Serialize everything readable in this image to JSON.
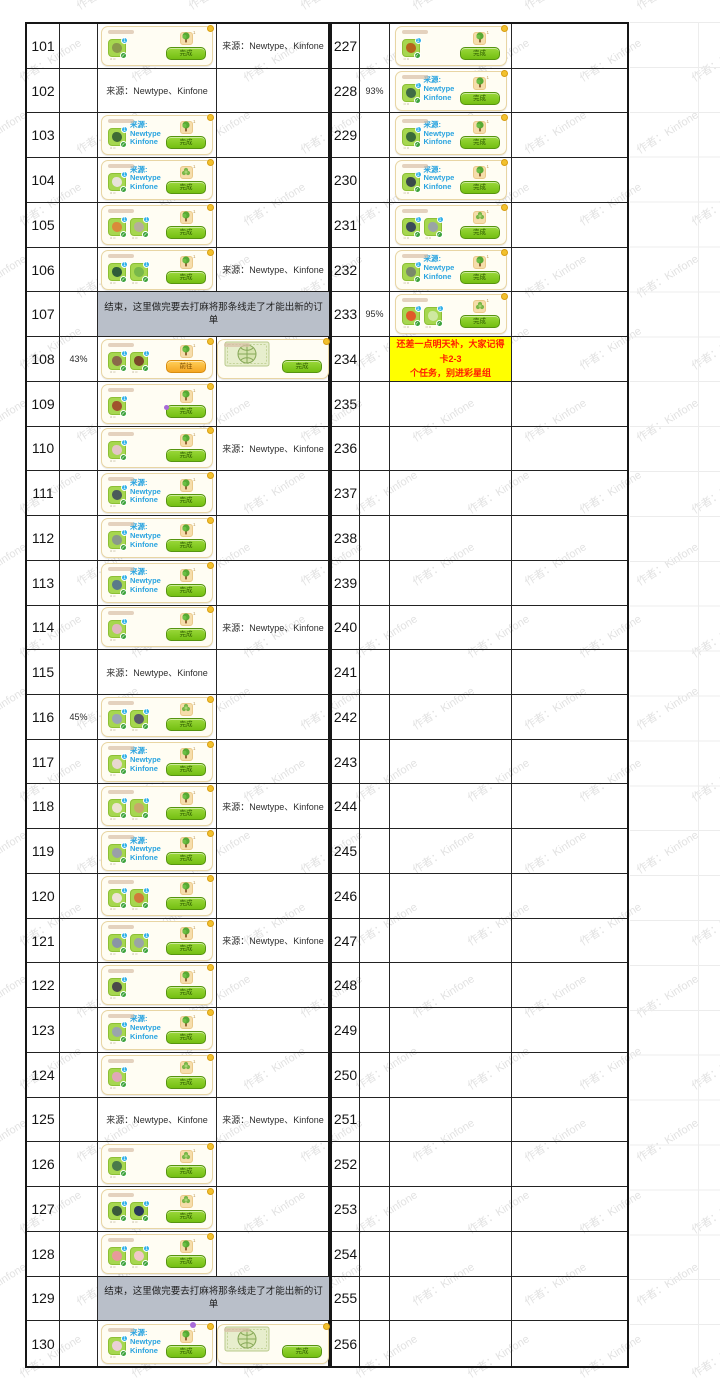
{
  "watermark": {
    "text": "作者：Kinfone",
    "color": "#e2e2e2"
  },
  "labels": {
    "source": "来源：Newtype、Kinfone",
    "card_source_lines": [
      "来源:",
      "Newtype",
      "Kinfone"
    ],
    "done": "完成",
    "go": "前往",
    "badge": "1",
    "reward_count": "1",
    "check": "✓"
  },
  "notes": {
    "gray": "结束，这里做完要去打麻将那条线走了才能出新的订单",
    "yellow_line1": "还差一点明天补，大家记得卡2-3",
    "yellow_line2": "个任务，别进彩星组"
  },
  "colors": {
    "card_bg": "#fffdf3",
    "card_border": "#e8d5a3",
    "item_bg": "#a6d74f",
    "badge_blue": "#2fb0e8",
    "check_green": "#3ba23a",
    "btn_green": "#74bf12",
    "btn_orange": "#f5a623",
    "note_gray_bg": "#b9bfc9",
    "note_yellow_bg": "#ffff00",
    "note_yellow_text": "#ff1e00",
    "inline_source_blue": "#2aa4e0",
    "grid_line": "#222222"
  },
  "left_rows": [
    {
      "num": "101",
      "pct": "",
      "c": {
        "kind": "card",
        "items": [
          "#8a9a4a"
        ],
        "src": false,
        "btn": "done",
        "reward": "tree"
      },
      "d": {
        "kind": "text"
      }
    },
    {
      "num": "102",
      "pct": "",
      "c": {
        "kind": "text"
      },
      "d": {
        "kind": "empty"
      }
    },
    {
      "num": "103",
      "pct": "",
      "c": {
        "kind": "card",
        "items": [
          "#3f6b35"
        ],
        "src": true,
        "btn": "done",
        "reward": "tree"
      },
      "d": {
        "kind": "empty"
      }
    },
    {
      "num": "104",
      "pct": "",
      "c": {
        "kind": "card",
        "items": [
          "#e8e3d8"
        ],
        "src": true,
        "btn": "done",
        "reward": "flower"
      },
      "d": {
        "kind": "empty"
      }
    },
    {
      "num": "105",
      "pct": "",
      "c": {
        "kind": "card",
        "items": [
          "#d98a3a",
          "#b5af9b"
        ],
        "src": false,
        "btn": "done",
        "reward": "tree"
      },
      "d": {
        "kind": "empty"
      }
    },
    {
      "num": "106",
      "pct": "",
      "c": {
        "kind": "card",
        "items": [
          "#2f5d3a",
          "#79b84a"
        ],
        "src": false,
        "btn": "done",
        "reward": "tree"
      },
      "d": {
        "kind": "text"
      }
    },
    {
      "num": "107",
      "pct": "",
      "c": {
        "kind": "gray"
      },
      "d": {
        "kind": "merged"
      }
    },
    {
      "num": "108",
      "pct": "43%",
      "c": {
        "kind": "card",
        "items": [
          "#8a6a4a",
          "#7a4a2a"
        ],
        "src": false,
        "btn": "go",
        "reward": "tree"
      },
      "d": {
        "kind": "card2"
      }
    },
    {
      "num": "109",
      "pct": "",
      "c": {
        "kind": "card",
        "items": [
          "#a0522d"
        ],
        "src": false,
        "btn": "done",
        "reward": "tree",
        "dot": "mid"
      },
      "d": {
        "kind": "empty"
      }
    },
    {
      "num": "110",
      "pct": "",
      "c": {
        "kind": "card",
        "items": [
          "#e3c6c6"
        ],
        "src": false,
        "btn": "done",
        "reward": "tree"
      },
      "d": {
        "kind": "text"
      }
    },
    {
      "num": "111",
      "pct": "",
      "c": {
        "kind": "card",
        "items": [
          "#4a5a5a"
        ],
        "src": true,
        "btn": "done",
        "reward": "tree"
      },
      "d": {
        "kind": "empty"
      }
    },
    {
      "num": "112",
      "pct": "",
      "c": {
        "kind": "card",
        "items": [
          "#8a9a8a"
        ],
        "src": true,
        "btn": "done",
        "reward": "tree"
      },
      "d": {
        "kind": "empty"
      }
    },
    {
      "num": "113",
      "pct": "",
      "c": {
        "kind": "card",
        "items": [
          "#5a7a8a"
        ],
        "src": true,
        "btn": "done",
        "reward": "tree"
      },
      "d": {
        "kind": "empty"
      }
    },
    {
      "num": "114",
      "pct": "",
      "c": {
        "kind": "card",
        "items": [
          "#e0b8c0"
        ],
        "src": false,
        "btn": "done",
        "reward": "tree"
      },
      "d": {
        "kind": "text"
      }
    },
    {
      "num": "115",
      "pct": "",
      "c": {
        "kind": "text"
      },
      "d": {
        "kind": "empty"
      }
    },
    {
      "num": "116",
      "pct": "45%",
      "c": {
        "kind": "card",
        "items": [
          "#9aa5b5",
          "#5a5a6a"
        ],
        "src": false,
        "btn": "done",
        "reward": "flower"
      },
      "d": {
        "kind": "empty"
      }
    },
    {
      "num": "117",
      "pct": "",
      "c": {
        "kind": "card",
        "items": [
          "#e8d8d0"
        ],
        "src": true,
        "btn": "done",
        "reward": "tree"
      },
      "d": {
        "kind": "empty"
      }
    },
    {
      "num": "118",
      "pct": "",
      "c": {
        "kind": "card",
        "items": [
          "#ece4cf",
          "#c8a86a"
        ],
        "src": false,
        "btn": "done",
        "reward": "tree"
      },
      "d": {
        "kind": "text"
      }
    },
    {
      "num": "119",
      "pct": "",
      "c": {
        "kind": "card",
        "items": [
          "#9aa0a8"
        ],
        "src": true,
        "btn": "done",
        "reward": "tree"
      },
      "d": {
        "kind": "empty"
      }
    },
    {
      "num": "120",
      "pct": "",
      "c": {
        "kind": "card",
        "items": [
          "#eee4da",
          "#d07a3a"
        ],
        "src": false,
        "btn": "done",
        "reward": "tree"
      },
      "d": {
        "kind": "empty"
      }
    },
    {
      "num": "121",
      "pct": "",
      "c": {
        "kind": "card",
        "items": [
          "#8a95a5",
          "#9aa5a5"
        ],
        "src": false,
        "btn": "done",
        "reward": "tree"
      },
      "d": {
        "kind": "text"
      }
    },
    {
      "num": "122",
      "pct": "",
      "c": {
        "kind": "card",
        "items": [
          "#4a4a4a"
        ],
        "src": false,
        "btn": "done",
        "reward": "tree"
      },
      "d": {
        "kind": "empty"
      }
    },
    {
      "num": "123",
      "pct": "",
      "c": {
        "kind": "card",
        "items": [
          "#9aa5ad"
        ],
        "src": true,
        "btn": "done",
        "reward": "tree"
      },
      "d": {
        "kind": "empty"
      }
    },
    {
      "num": "124",
      "pct": "",
      "c": {
        "kind": "card",
        "items": [
          "#e0a8b8"
        ],
        "src": false,
        "btn": "done",
        "reward": "flower"
      },
      "d": {
        "kind": "empty"
      }
    },
    {
      "num": "125",
      "pct": "",
      "c": {
        "kind": "text"
      },
      "d": {
        "kind": "text"
      }
    },
    {
      "num": "126",
      "pct": "",
      "c": {
        "kind": "card",
        "items": [
          "#4a7a4a"
        ],
        "src": false,
        "btn": "done",
        "reward": "flower"
      },
      "d": {
        "kind": "empty"
      }
    },
    {
      "num": "127",
      "pct": "",
      "c": {
        "kind": "card",
        "items": [
          "#3a5a3a",
          "#2a3a5a"
        ],
        "src": false,
        "btn": "done",
        "reward": "flower"
      },
      "d": {
        "kind": "empty"
      }
    },
    {
      "num": "128",
      "pct": "",
      "c": {
        "kind": "card",
        "items": [
          "#e89a9a",
          "#f0c8c8"
        ],
        "src": false,
        "btn": "done",
        "reward": "tree"
      },
      "d": {
        "kind": "empty"
      }
    },
    {
      "num": "129",
      "pct": "",
      "c": {
        "kind": "gray"
      },
      "d": {
        "kind": "merged"
      }
    },
    {
      "num": "130",
      "pct": "",
      "c": {
        "kind": "card",
        "items": [
          "#ead0d8"
        ],
        "src": true,
        "btn": "done",
        "reward": "tree",
        "dot": "top"
      },
      "d": {
        "kind": "card2"
      }
    }
  ],
  "right_rows": [
    {
      "num": "227",
      "pct": "",
      "c": {
        "kind": "card",
        "items": [
          "#b5651d"
        ],
        "src": false,
        "btn": "done",
        "reward": "tree"
      },
      "d": {
        "kind": "empty"
      }
    },
    {
      "num": "228",
      "pct": "93%",
      "c": {
        "kind": "card",
        "items": [
          "#3f6b45"
        ],
        "src": true,
        "btn": "done",
        "reward": "tree"
      },
      "d": {
        "kind": "empty"
      }
    },
    {
      "num": "229",
      "pct": "",
      "c": {
        "kind": "card",
        "items": [
          "#3a6b3a"
        ],
        "src": true,
        "btn": "done",
        "reward": "tree"
      },
      "d": {
        "kind": "empty"
      }
    },
    {
      "num": "230",
      "pct": "",
      "c": {
        "kind": "card",
        "items": [
          "#3a4a4a"
        ],
        "src": true,
        "btn": "done",
        "reward": "tree"
      },
      "d": {
        "kind": "empty"
      }
    },
    {
      "num": "231",
      "pct": "",
      "c": {
        "kind": "card",
        "items": [
          "#3a4a5a",
          "#9aa5a5"
        ],
        "src": false,
        "btn": "done",
        "reward": "flower"
      },
      "d": {
        "kind": "empty"
      }
    },
    {
      "num": "232",
      "pct": "",
      "c": {
        "kind": "card",
        "items": [
          "#7a8a6a"
        ],
        "src": true,
        "btn": "done",
        "reward": "tree"
      },
      "d": {
        "kind": "empty"
      }
    },
    {
      "num": "233",
      "pct": "95%",
      "c": {
        "kind": "card",
        "items": [
          "#e05a2a",
          "#cfe8a0"
        ],
        "src": false,
        "btn": "done",
        "reward": "flower"
      },
      "d": {
        "kind": "empty"
      }
    },
    {
      "num": "234",
      "pct": "",
      "c": {
        "kind": "yellow"
      },
      "d": {
        "kind": "empty"
      }
    },
    {
      "num": "235",
      "pct": "",
      "c": {
        "kind": "empty"
      },
      "d": {
        "kind": "empty"
      }
    },
    {
      "num": "236",
      "pct": "",
      "c": {
        "kind": "empty"
      },
      "d": {
        "kind": "empty"
      }
    },
    {
      "num": "237",
      "pct": "",
      "c": {
        "kind": "empty"
      },
      "d": {
        "kind": "empty"
      }
    },
    {
      "num": "238",
      "pct": "",
      "c": {
        "kind": "empty"
      },
      "d": {
        "kind": "empty"
      }
    },
    {
      "num": "239",
      "pct": "",
      "c": {
        "kind": "empty"
      },
      "d": {
        "kind": "empty"
      }
    },
    {
      "num": "240",
      "pct": "",
      "c": {
        "kind": "empty"
      },
      "d": {
        "kind": "empty"
      }
    },
    {
      "num": "241",
      "pct": "",
      "c": {
        "kind": "empty"
      },
      "d": {
        "kind": "empty"
      }
    },
    {
      "num": "242",
      "pct": "",
      "c": {
        "kind": "empty"
      },
      "d": {
        "kind": "empty"
      }
    },
    {
      "num": "243",
      "pct": "",
      "c": {
        "kind": "empty"
      },
      "d": {
        "kind": "empty"
      }
    },
    {
      "num": "244",
      "pct": "",
      "c": {
        "kind": "empty"
      },
      "d": {
        "kind": "empty"
      }
    },
    {
      "num": "245",
      "pct": "",
      "c": {
        "kind": "empty"
      },
      "d": {
        "kind": "empty"
      }
    },
    {
      "num": "246",
      "pct": "",
      "c": {
        "kind": "empty"
      },
      "d": {
        "kind": "empty"
      }
    },
    {
      "num": "247",
      "pct": "",
      "c": {
        "kind": "empty"
      },
      "d": {
        "kind": "empty"
      }
    },
    {
      "num": "248",
      "pct": "",
      "c": {
        "kind": "empty"
      },
      "d": {
        "kind": "empty"
      }
    },
    {
      "num": "249",
      "pct": "",
      "c": {
        "kind": "empty"
      },
      "d": {
        "kind": "empty"
      }
    },
    {
      "num": "250",
      "pct": "",
      "c": {
        "kind": "empty"
      },
      "d": {
        "kind": "empty"
      }
    },
    {
      "num": "251",
      "pct": "",
      "c": {
        "kind": "empty"
      },
      "d": {
        "kind": "empty"
      }
    },
    {
      "num": "252",
      "pct": "",
      "c": {
        "kind": "empty"
      },
      "d": {
        "kind": "empty"
      }
    },
    {
      "num": "253",
      "pct": "",
      "c": {
        "kind": "empty"
      },
      "d": {
        "kind": "empty"
      }
    },
    {
      "num": "254",
      "pct": "",
      "c": {
        "kind": "empty"
      },
      "d": {
        "kind": "empty"
      }
    },
    {
      "num": "255",
      "pct": "",
      "c": {
        "kind": "empty"
      },
      "d": {
        "kind": "empty"
      }
    },
    {
      "num": "256",
      "pct": "",
      "c": {
        "kind": "empty"
      },
      "d": {
        "kind": "empty"
      }
    }
  ]
}
